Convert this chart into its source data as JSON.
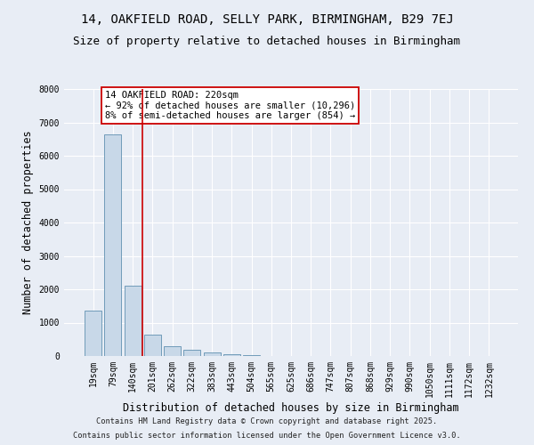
{
  "title1": "14, OAKFIELD ROAD, SELLY PARK, BIRMINGHAM, B29 7EJ",
  "title2": "Size of property relative to detached houses in Birmingham",
  "xlabel": "Distribution of detached houses by size in Birmingham",
  "ylabel": "Number of detached properties",
  "categories": [
    "19sqm",
    "79sqm",
    "140sqm",
    "201sqm",
    "262sqm",
    "322sqm",
    "383sqm",
    "443sqm",
    "504sqm",
    "565sqm",
    "625sqm",
    "686sqm",
    "747sqm",
    "807sqm",
    "868sqm",
    "929sqm",
    "990sqm",
    "1050sqm",
    "1111sqm",
    "1172sqm",
    "1232sqm"
  ],
  "values": [
    1350,
    6650,
    2100,
    650,
    300,
    175,
    100,
    50,
    25,
    12,
    8,
    5,
    3,
    2,
    2,
    1,
    1,
    0,
    0,
    0,
    0
  ],
  "bar_color": "#c8d8e8",
  "bar_edge_color": "#6090b0",
  "vline_color": "#cc0000",
  "vline_x": 2.5,
  "annotation_text": "14 OAKFIELD ROAD: 220sqm\n← 92% of detached houses are smaller (10,296)\n8% of semi-detached houses are larger (854) →",
  "annotation_box_color": "#cc0000",
  "annotation_box_facecolor": "white",
  "ylim": [
    0,
    8000
  ],
  "yticks": [
    0,
    1000,
    2000,
    3000,
    4000,
    5000,
    6000,
    7000,
    8000
  ],
  "background_color": "#e8edf5",
  "grid_color": "white",
  "footnote1": "Contains HM Land Registry data © Crown copyright and database right 2025.",
  "footnote2": "Contains public sector information licensed under the Open Government Licence v3.0.",
  "title_fontsize": 10,
  "subtitle_fontsize": 9,
  "axis_label_fontsize": 8.5,
  "tick_fontsize": 7,
  "annot_fontsize": 7.5
}
